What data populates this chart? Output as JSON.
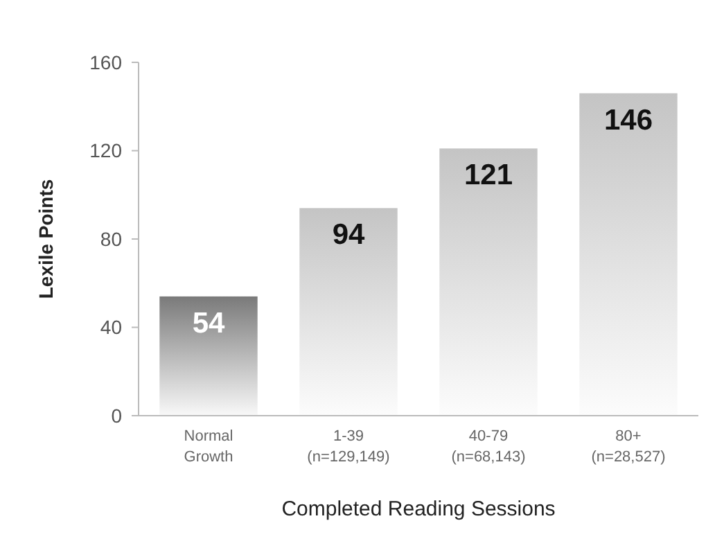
{
  "chart_data": {
    "type": "bar",
    "xlabel": "Completed Reading Sessions",
    "ylabel": "Lexile Points",
    "categories": [
      "Normal Growth",
      "1-39 (n=129,149)",
      "40-79 (n=68,143)",
      "80+ (n=28,527)"
    ],
    "values": [
      54,
      94,
      121,
      146
    ],
    "colors": [
      "#7a7a7a",
      "#c4c4c4",
      "#c4c4c4",
      "#c4c4c4"
    ],
    "ylim": [
      0,
      160
    ],
    "yticks": [
      0,
      40,
      80,
      120,
      160
    ],
    "data_labels": true
  }
}
